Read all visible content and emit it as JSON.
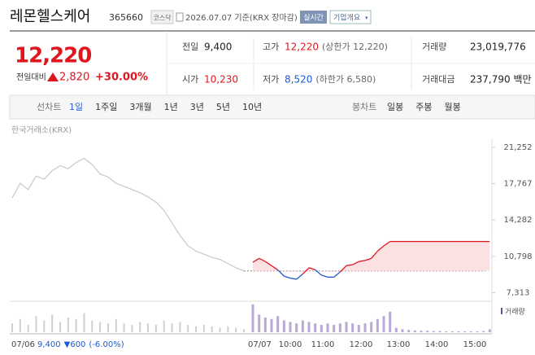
{
  "header": {
    "name": "레몬헬스케어",
    "code": "365660",
    "market": "코스닥",
    "date": "2026.07.07 기준(KRX 장마감)",
    "realtime": "실시간",
    "company": "기업개요"
  },
  "price": {
    "current": "12,220",
    "change_label": "전일대비",
    "change": "2,820",
    "rate": "+30.00%"
  },
  "summary": {
    "rows": [
      [
        {
          "label": "전일",
          "value": "9,400",
          "color": "#222"
        },
        {
          "label": "고가",
          "value": "12,220",
          "note": "(상한가 12,220)",
          "color": "#e0161e"
        },
        {
          "label": "거래량",
          "value": "23,019,776",
          "color": "#222"
        }
      ],
      [
        {
          "label": "시가",
          "value": "10,230",
          "color": "#e0161e"
        },
        {
          "label": "저가",
          "value": "8,520",
          "note": "(하한가 6,580)",
          "color": "#1a5ad6"
        },
        {
          "label": "거래대금",
          "value": "237,790 백만",
          "color": "#222"
        }
      ]
    ]
  },
  "tabs": {
    "line_label": "선차트",
    "line": [
      "1일",
      "1주일",
      "3개월",
      "1년",
      "3년",
      "5년",
      "10년"
    ],
    "candle_label": "봉차트",
    "candle": [
      "일봉",
      "주봉",
      "월봉"
    ]
  },
  "chart_data": {
    "type": "line",
    "source": "한국거래소(KRX)",
    "ylim": [
      6800,
      21950
    ],
    "yticks": [
      {
        "value": 21252,
        "label": "21,252"
      },
      {
        "value": 17767,
        "label": "17,767"
      },
      {
        "value": 14282,
        "label": "14,282"
      },
      {
        "value": 10798,
        "label": "10,798"
      },
      {
        "value": 7313,
        "label": "7,313"
      }
    ],
    "previous_close": 9400,
    "x_labels": [
      "07/06",
      "07/07",
      "10:00",
      "11:00",
      "12:00",
      "13:00",
      "14:00",
      "15:00"
    ],
    "series": [
      {
        "name": "07/06",
        "color": "#c8c8c8",
        "values": [
          16400,
          17800,
          17200,
          18500,
          18200,
          19000,
          19500,
          19200,
          19800,
          20200,
          19600,
          18700,
          18400,
          17800,
          17500,
          17200,
          16900,
          16500,
          16000,
          15200,
          14000,
          12800,
          11800,
          11300,
          11000,
          10700,
          10500,
          10100,
          9700,
          9400
        ]
      },
      {
        "name": "07/07",
        "color": "#e0161e",
        "down_color": "#1a5ad6",
        "values": [
          10230,
          10600,
          10300,
          9900,
          9500,
          8900,
          8700,
          8600,
          9100,
          9700,
          9500,
          9000,
          8800,
          8800,
          9300,
          9900,
          10000,
          10300,
          10400,
          10600,
          11300,
          11800,
          12220,
          12220,
          12220,
          12220,
          12220,
          12220,
          12220,
          12220,
          12220,
          12220,
          12220,
          12220,
          12220,
          12220,
          12220,
          12220,
          12220
        ]
      }
    ],
    "volume": {
      "name": "거래량",
      "color": "#b9a9d6",
      "ylim": [
        0,
        100
      ],
      "previous": [
        30,
        45,
        25,
        55,
        40,
        60,
        35,
        50,
        45,
        65,
        40,
        35,
        30,
        45,
        30,
        25,
        35,
        30,
        25,
        40,
        30,
        35,
        25,
        20,
        25,
        20,
        15,
        20,
        15,
        10
      ],
      "today": [
        95,
        60,
        50,
        45,
        55,
        40,
        35,
        30,
        40,
        35,
        30,
        25,
        30,
        25,
        30,
        35,
        30,
        25,
        30,
        35,
        45,
        55,
        70,
        15,
        10,
        8,
        6,
        5,
        5,
        4,
        4,
        3,
        3,
        3,
        3,
        3,
        3,
        4,
        10
      ]
    },
    "footer": {
      "close": "9,400",
      "change": "▼600",
      "rate": "(-6.00%)"
    }
  }
}
